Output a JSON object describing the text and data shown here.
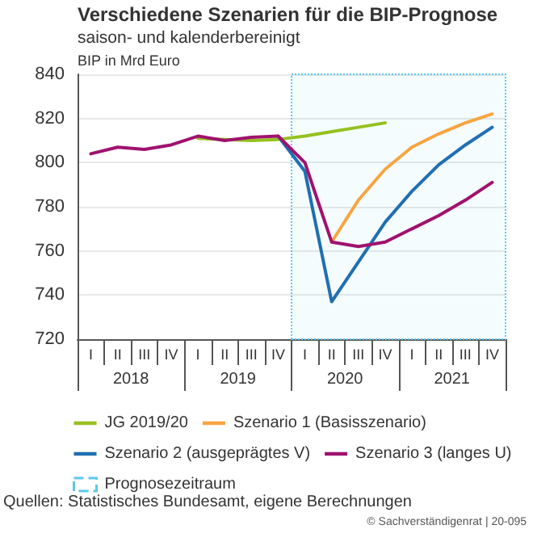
{
  "chart_data": {
    "type": "line",
    "title": "Verschiedene Szenarien für die BIP-Prognose",
    "subtitle": "saison- und kalenderbereinigt",
    "ylabel": "BIP in Mrd Euro",
    "categories": [
      "I",
      "II",
      "III",
      "IV",
      "I",
      "II",
      "III",
      "IV",
      "I",
      "II",
      "III",
      "IV",
      "I",
      "II",
      "III",
      "IV"
    ],
    "series": [
      {
        "name": "JG 2019/20",
        "color": "#95c11f",
        "values": [
          null,
          null,
          null,
          null,
          811,
          810.5,
          810,
          810.5,
          812,
          814,
          816,
          818,
          null,
          null,
          null,
          null
        ]
      },
      {
        "name": "Szenario 1 (Basisszenario)",
        "color": "#f7a541",
        "values": [
          null,
          null,
          null,
          null,
          null,
          null,
          null,
          null,
          null,
          764,
          783,
          797,
          807,
          813,
          818,
          822
        ]
      },
      {
        "name": "Szenario 2 (ausgeprägtes V)",
        "color": "#1f6fb2",
        "values": [
          null,
          null,
          null,
          null,
          null,
          null,
          null,
          812,
          796,
          737,
          755,
          773,
          787,
          799,
          808,
          816
        ]
      },
      {
        "name": "Szenario 3 (langes U)",
        "color": "#a0126e",
        "values": [
          804,
          807,
          806,
          808,
          812,
          810,
          811.5,
          812,
          800,
          764,
          762,
          764,
          770,
          776,
          783,
          791
        ]
      }
    ],
    "x2lim": [
      2018,
      2022
    ],
    "x2ticks": [
      {
        "value": 2018,
        "label": null
      },
      {
        "value": 2018.5,
        "label": "2018"
      },
      {
        "value": 2019,
        "label": null
      },
      {
        "value": 2019.5,
        "label": "2019"
      },
      {
        "value": 2020,
        "label": null
      },
      {
        "value": 2020.5,
        "label": "2020"
      },
      {
        "value": 2021,
        "label": null
      },
      {
        "value": 2021.5,
        "label": "2021"
      },
      {
        "value": 2022,
        "label": null
      }
    ],
    "ylim": [
      720,
      840
    ],
    "yticks": [
      720,
      740,
      760,
      780,
      800,
      820,
      840
    ],
    "bands": [
      {
        "axis": "x2",
        "from": 2020,
        "to": 2022,
        "label": "Prognosezeitraum",
        "color": "#5bc8f0"
      }
    ],
    "grid": "y",
    "legend": "bottom",
    "marker": "none",
    "line_style": "solid",
    "annotations": [
      "Quellen: Statistisches Bundesamt, eigene Berechnungen",
      "© Sachverständigenrat | 20-095"
    ]
  }
}
